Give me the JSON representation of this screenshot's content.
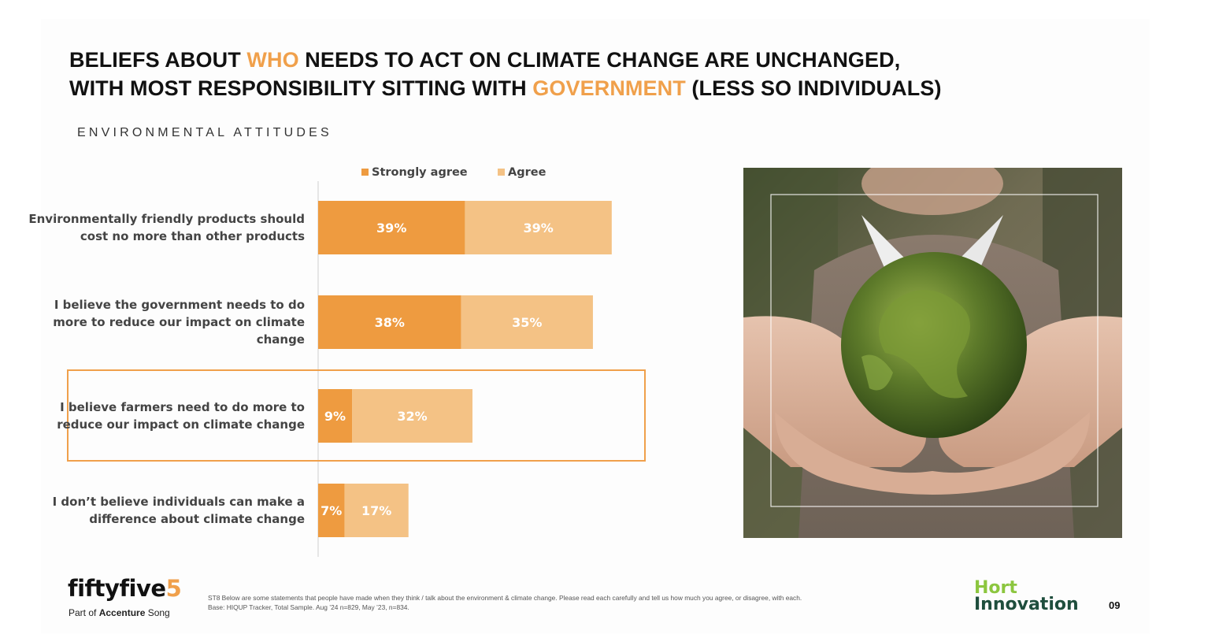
{
  "title": {
    "line1_pre": "BELIEFS ABOUT ",
    "line1_hl": "WHO",
    "line1_post": " NEEDS TO ACT ON CLIMATE CHANGE ARE UNCHANGED,",
    "line2_pre": "WITH MOST RESPONSIBILITY SITTING WITH ",
    "line2_hl": "GOVERNMENT",
    "line2_post": " (LESS SO INDIVIDUALS)"
  },
  "subtitle": "ENVIRONMENTAL ATTITUDES",
  "chart_data": {
    "type": "bar",
    "orientation": "horizontal",
    "stacked": true,
    "categories": [
      [
        "Environmentally friendly products should",
        "cost no more than other products"
      ],
      [
        "I believe the government needs to do",
        "more to reduce our impact on climate",
        "change"
      ],
      [
        "I believe farmers need to do more to",
        "reduce our impact on climate change"
      ],
      [
        "I don’t believe individuals can make a",
        "difference about climate change"
      ]
    ],
    "series": [
      {
        "name": "Strongly agree",
        "values": [
          39,
          38,
          9,
          7
        ],
        "labels": [
          "39%",
          "38%",
          "9%",
          "7%"
        ],
        "color": "#ee9b40"
      },
      {
        "name": "Agree",
        "values": [
          39,
          35,
          32,
          17
        ],
        "labels": [
          "39%",
          "35%",
          "32%",
          "17%"
        ],
        "color": "#f4c285"
      }
    ],
    "highlight_index": 2,
    "highlight_color": "#f0a04b",
    "legend_position": "top",
    "grid": false
  },
  "footer": {
    "logo_main": "fiftyfive",
    "logo_accent": "5",
    "logo_sub_pre": "Part of ",
    "logo_sub_bold": "Accenture",
    "logo_sub_post": " Song",
    "note_line1": "ST8 Below are some statements that people have made when they think / talk about the environment & climate change. Please read each carefully and tell us how much you agree, or disagree, with each.",
    "note_line2": "Base: HIQUP Tracker, Total Sample. Aug ’24 n=829, May ’23, n=834.",
    "hort_line1": "Hort",
    "hort_line2": "Innovation",
    "page_number": "09"
  },
  "colors": {
    "accent": "#f0a04b",
    "title": "#111111"
  },
  "image": {
    "icon": "hands-holding-moss-globe-photo"
  }
}
